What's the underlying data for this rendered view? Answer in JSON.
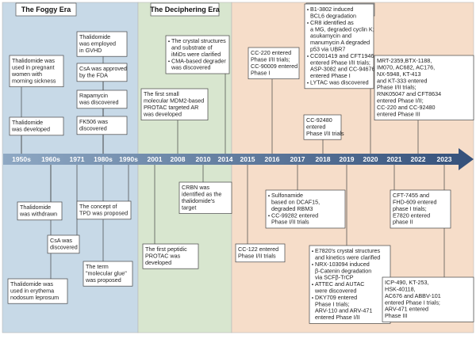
{
  "eras": [
    {
      "title": "The Foggy Era"
    },
    {
      "title": "The Deciphering Era"
    },
    {
      "title": "The Glorious Era"
    }
  ],
  "timeline": [
    "1950s",
    "1960s",
    "1971",
    "1980s",
    "1990s",
    "2001",
    "2008",
    "2010",
    "2014",
    "2015",
    "2016",
    "2017",
    "2018",
    "2019",
    "2020",
    "2021",
    "2022",
    "2023"
  ],
  "events": [
    {
      "items": [
        [
          "Thalidomide was",
          "used in pregnant",
          "women with",
          "morning sickness"
        ]
      ]
    },
    {
      "items": [
        [
          "Thalidomide",
          "was developed"
        ]
      ]
    },
    {
      "items": [
        [
          "Thalidomide",
          "was employed",
          "in GVHD"
        ]
      ]
    },
    {
      "items": [
        [
          "CsA was approved",
          "by the FDA"
        ]
      ]
    },
    {
      "items": [
        [
          "Rapamycin",
          "was discovered"
        ]
      ]
    },
    {
      "items": [
        [
          "FK506 was",
          "discovered"
        ]
      ]
    },
    {
      "items": [
        [
          "The crystal structures",
          "and substrate of",
          "iMiDs were clarified"
        ],
        [
          "CMA-based degrader",
          "was discovered"
        ]
      ]
    },
    {
      "items": [
        [
          "The first small",
          "molecular MDM2-based",
          "PROTAC targeted AR",
          "was developed"
        ]
      ]
    },
    {
      "items": [
        [
          "CC-220 entered",
          "Phase I/II trials;",
          "CC-90009 entered",
          "Phase I"
        ]
      ]
    },
    {
      "items": [
        [
          "CC-92480",
          "entered",
          "Phase I/II trials"
        ]
      ]
    },
    {
      "items": [
        [
          "B1-3802 induced",
          "BCL6 degradation"
        ],
        [
          "CR8 identified as",
          "a MG, degraded cyclin K;",
          "asukamycin and",
          "manumycin A degraded",
          "p53 via UBR7"
        ],
        [
          "CC001419 and CFT1946",
          "entered Phase I/II trials;",
          "ASP-3082 and CC-94676",
          "entered Phase I"
        ],
        [
          "LYTAC was discovered"
        ]
      ]
    },
    {
      "items": [
        [
          "MRT-2359,BTX-1188,",
          "IM070, AC682, AC176,",
          "NX-5948, KT-413",
          "and KT-333 entered",
          "Phase I/II trials;",
          "RNK05047 and CFT8634",
          "entered Phase I/II;",
          "CC-220 and CC-92480",
          "entered Phase III"
        ]
      ]
    },
    {
      "items": [
        [
          "Thalidomide",
          "was withdrawn"
        ]
      ]
    },
    {
      "items": [
        [
          "CsA was",
          "discovered"
        ]
      ]
    },
    {
      "items": [
        [
          "Thalidomide was",
          "used in erythema",
          "nodosum leprosum"
        ]
      ]
    },
    {
      "items": [
        [
          "The concept of",
          "TPD was proposed"
        ]
      ]
    },
    {
      "items": [
        [
          "The term",
          "\"molecular glue\"",
          "was proposed"
        ]
      ]
    },
    {
      "items": [
        [
          "CRBN was",
          "identified as the",
          "thalidomide's",
          "target"
        ]
      ]
    },
    {
      "items": [
        [
          "The first peptidic",
          "PROTAC was",
          "developed"
        ]
      ]
    },
    {
      "items": [
        [
          "CC-122 entered",
          "Phase I/II trials"
        ]
      ]
    },
    {
      "items": [
        [
          "Sulfonamide",
          "based on DCAF15,",
          "degraded RBM3"
        ],
        [
          "CC-99282 entered",
          "Phase I/II trials"
        ]
      ]
    },
    {
      "items": [
        [
          "E7820's crystal structures",
          "and kinetics were clarified"
        ],
        [
          "NRX-103094 induced",
          "β-Catenin degradation",
          "via SCFβ-TrCP"
        ],
        [
          "ATTEC and AUTAC",
          "were discovered"
        ],
        [
          "DKY709 entered",
          "Phase I trials;",
          "ARV-110  and ARV-471",
          "entered Phase I/II"
        ]
      ]
    },
    {
      "items": [
        [
          "CFT-7455 and",
          "FHD-609 entered",
          "phase I trials;",
          "E7820 entered",
          "phase II"
        ]
      ]
    },
    {
      "items": [
        [
          "ICP-490, KT-253,",
          "HSK-40118,",
          "AC676 and ABBV-101",
          "entered Phase I trials;",
          "ARV-471 entered",
          "Phase III"
        ]
      ]
    }
  ]
}
